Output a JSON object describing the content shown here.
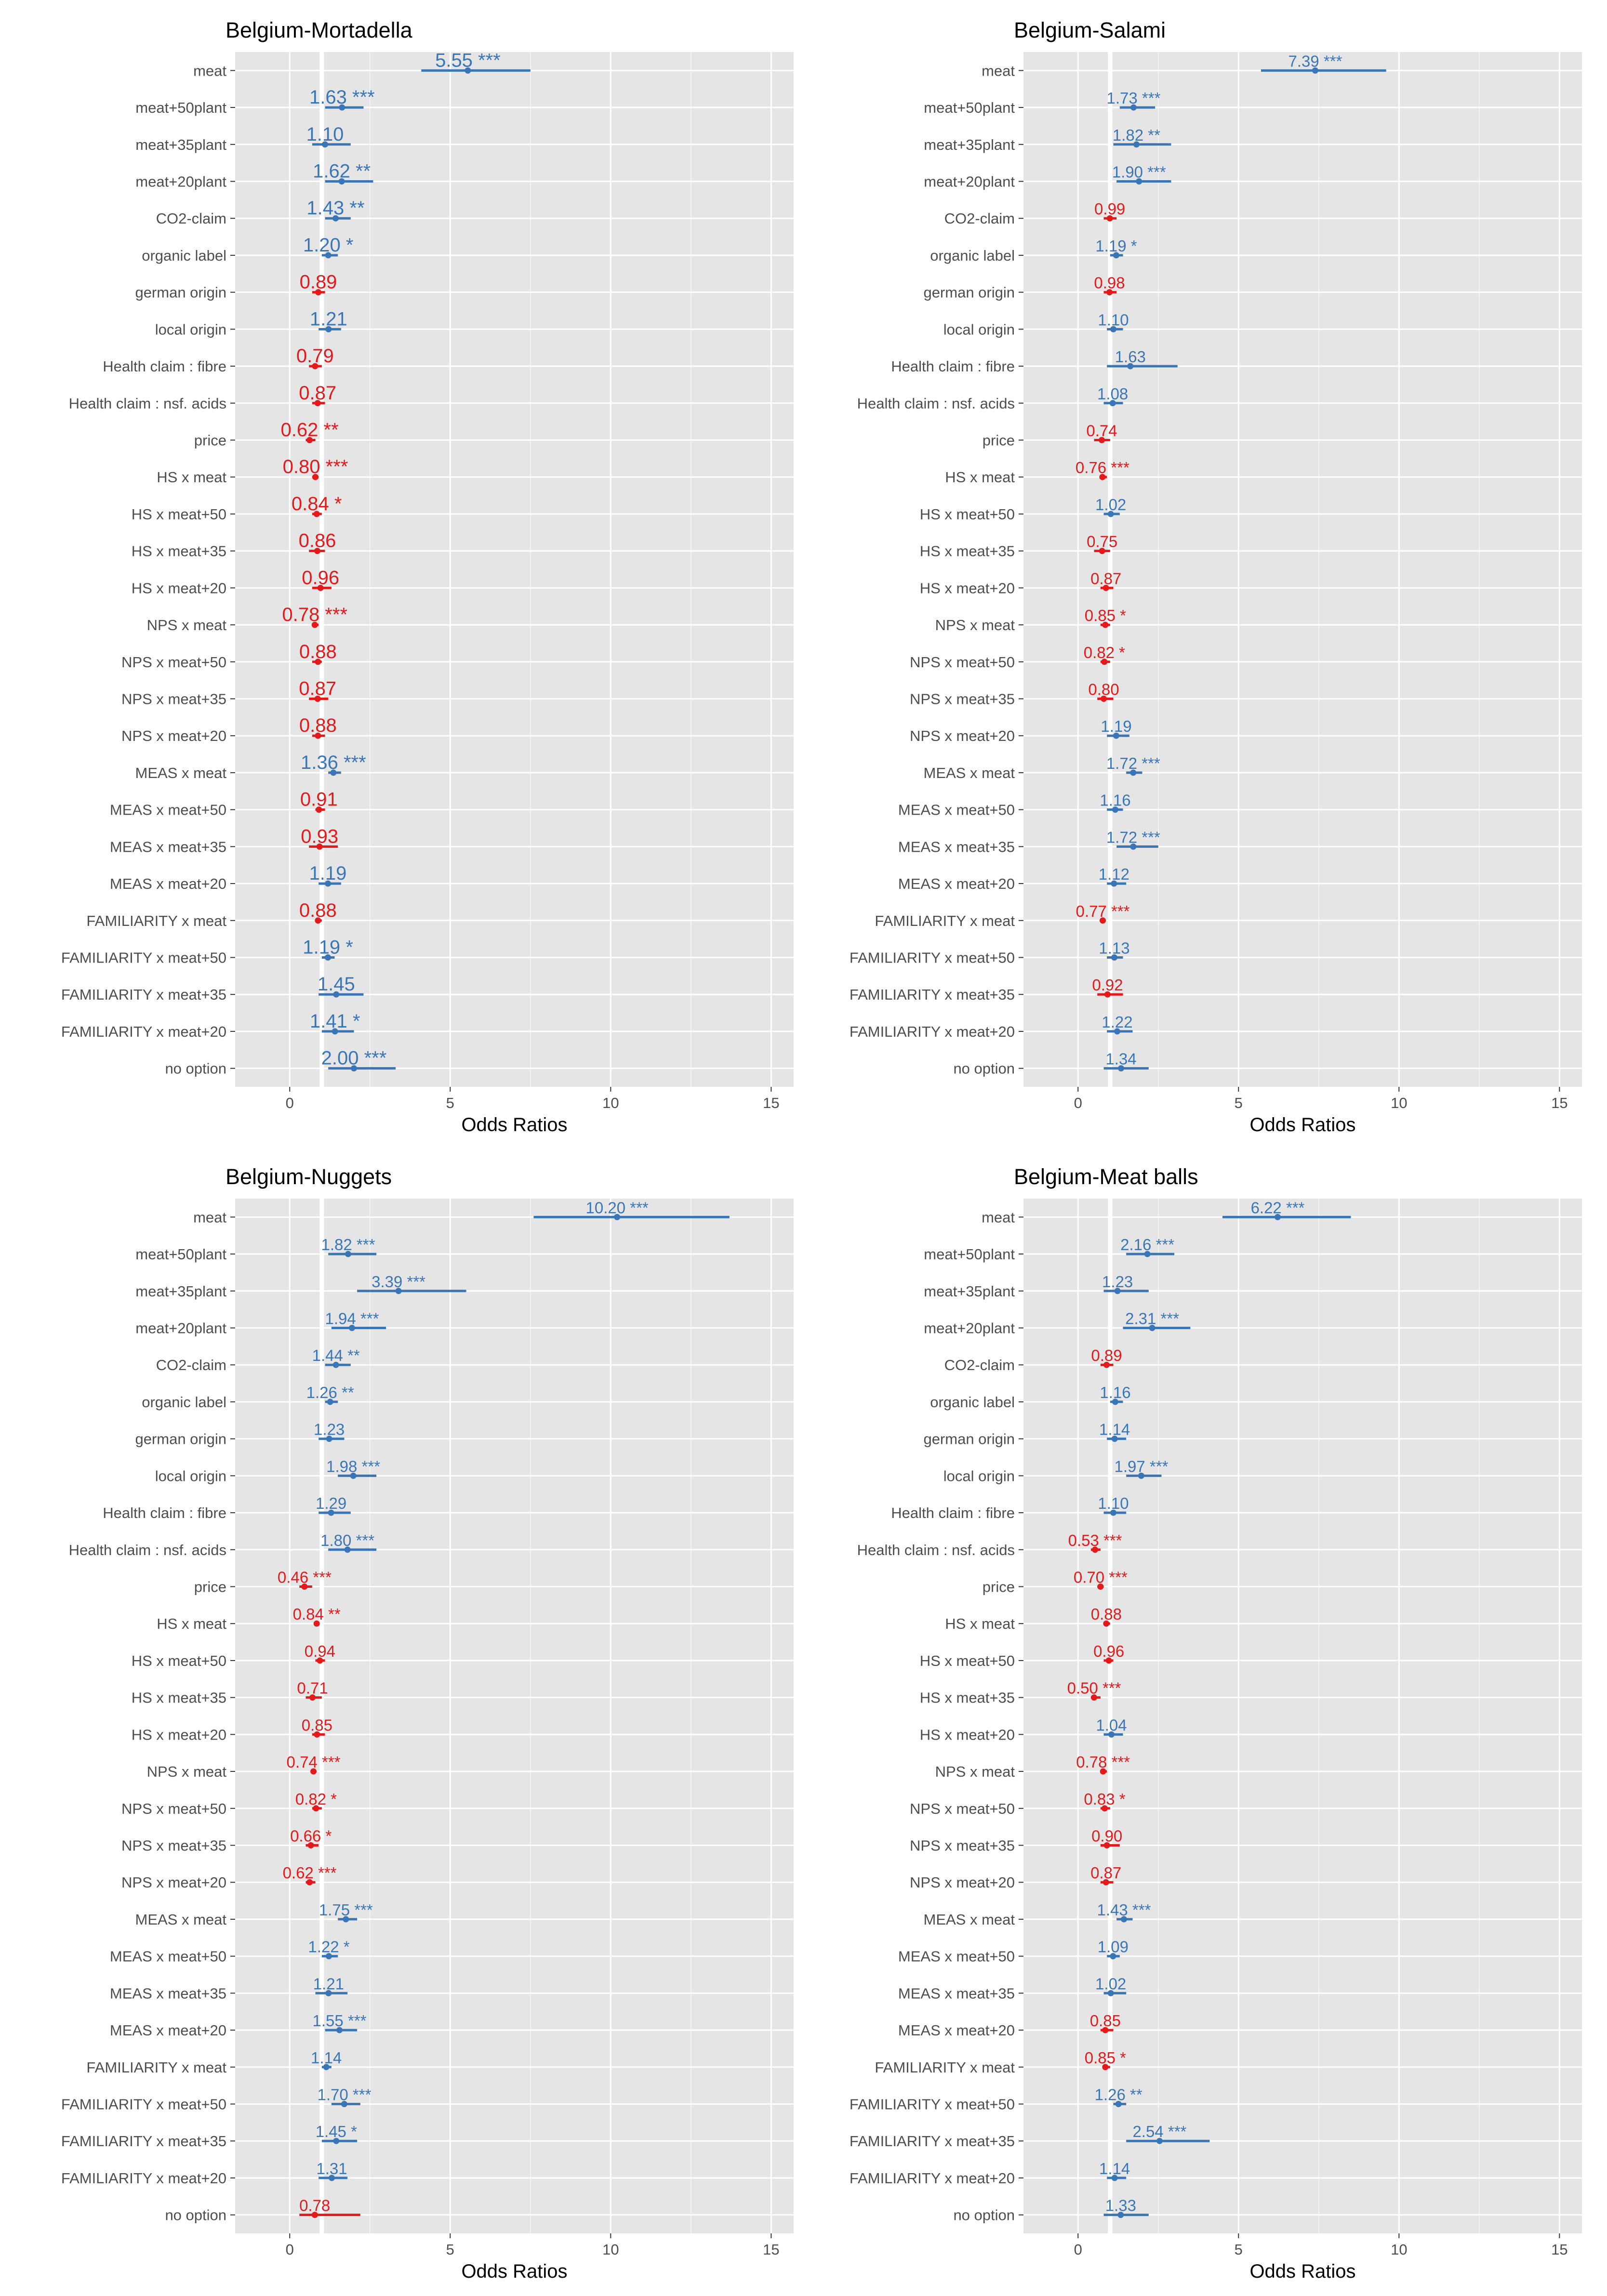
{
  "chart_data": [
    {
      "type": "forest",
      "title": "Belgium-Mortadella",
      "xlabel": "Odds Ratios",
      "xlim": [
        -1.7,
        15.7
      ],
      "xticks": [
        0,
        5,
        10,
        15
      ],
      "reference_line": 1,
      "grid": true,
      "label_size": "large",
      "rows": [
        {
          "label": "meat",
          "or": 5.55,
          "lo": 4.1,
          "hi": 7.5,
          "text": "5.55 ***"
        },
        {
          "label": "meat+50plant",
          "or": 1.63,
          "lo": 1.1,
          "hi": 2.3,
          "text": "1.63 ***"
        },
        {
          "label": "meat+35plant",
          "or": 1.1,
          "lo": 0.7,
          "hi": 1.9,
          "text": "1.10"
        },
        {
          "label": "meat+20plant",
          "or": 1.62,
          "lo": 1.1,
          "hi": 2.6,
          "text": "1.62 **"
        },
        {
          "label": "CO2-claim",
          "or": 1.43,
          "lo": 1.1,
          "hi": 1.9,
          "text": "1.43 **"
        },
        {
          "label": "organic label",
          "or": 1.2,
          "lo": 1.0,
          "hi": 1.5,
          "text": "1.20 *"
        },
        {
          "label": "german origin",
          "or": 0.89,
          "lo": 0.7,
          "hi": 1.1,
          "text": "0.89"
        },
        {
          "label": "local origin",
          "or": 1.21,
          "lo": 0.9,
          "hi": 1.6,
          "text": "1.21"
        },
        {
          "label": "Health claim :  fibre",
          "or": 0.79,
          "lo": 0.6,
          "hi": 1.0,
          "text": "0.79"
        },
        {
          "label": "Health claim :  nsf. acids",
          "or": 0.87,
          "lo": 0.7,
          "hi": 1.1,
          "text": "0.87"
        },
        {
          "label": "price",
          "or": 0.62,
          "lo": 0.5,
          "hi": 0.8,
          "text": "0.62 **"
        },
        {
          "label": "HS x meat",
          "or": 0.8,
          "lo": 0.7,
          "hi": 0.9,
          "text": "0.80 ***"
        },
        {
          "label": "HS x meat+50",
          "or": 0.84,
          "lo": 0.7,
          "hi": 1.0,
          "text": "0.84 *"
        },
        {
          "label": "HS x meat+35",
          "or": 0.86,
          "lo": 0.6,
          "hi": 1.1,
          "text": "0.86"
        },
        {
          "label": "HS x meat+20",
          "or": 0.96,
          "lo": 0.7,
          "hi": 1.3,
          "text": "0.96"
        },
        {
          "label": "NPS x meat",
          "or": 0.78,
          "lo": 0.7,
          "hi": 0.9,
          "text": "0.78 ***"
        },
        {
          "label": "NPS x meat+50",
          "or": 0.88,
          "lo": 0.7,
          "hi": 1.0,
          "text": "0.88"
        },
        {
          "label": "NPS x meat+35",
          "or": 0.87,
          "lo": 0.6,
          "hi": 1.2,
          "text": "0.87"
        },
        {
          "label": "NPS x meat+20",
          "or": 0.88,
          "lo": 0.7,
          "hi": 1.1,
          "text": "0.88"
        },
        {
          "label": "MEAS x meat",
          "or": 1.36,
          "lo": 1.2,
          "hi": 1.6,
          "text": "1.36 ***"
        },
        {
          "label": "MEAS x meat+50",
          "or": 0.91,
          "lo": 0.8,
          "hi": 1.1,
          "text": "0.91"
        },
        {
          "label": "MEAS x meat+35",
          "or": 0.93,
          "lo": 0.6,
          "hi": 1.5,
          "text": "0.93"
        },
        {
          "label": "MEAS x meat+20",
          "or": 1.19,
          "lo": 0.9,
          "hi": 1.6,
          "text": "1.19"
        },
        {
          "label": "FAMILIARITY x meat",
          "or": 0.88,
          "lo": 0.8,
          "hi": 1.0,
          "text": "0.88"
        },
        {
          "label": "FAMILIARITY x meat+50",
          "or": 1.19,
          "lo": 1.0,
          "hi": 1.4,
          "text": "1.19 *"
        },
        {
          "label": "FAMILIARITY x meat+35",
          "or": 1.45,
          "lo": 0.9,
          "hi": 2.3,
          "text": "1.45"
        },
        {
          "label": "FAMILIARITY x meat+20",
          "or": 1.41,
          "lo": 1.0,
          "hi": 2.0,
          "text": "1.41 *"
        },
        {
          "label": "no option",
          "or": 2.0,
          "lo": 1.2,
          "hi": 3.3,
          "text": "2.00 ***"
        }
      ]
    },
    {
      "type": "forest",
      "title": "Belgium-Salami",
      "xlabel": "Odds Ratios",
      "xlim": [
        -1.7,
        15.7
      ],
      "xticks": [
        0,
        5,
        10,
        15
      ],
      "reference_line": 1,
      "grid": true,
      "label_size": "small",
      "rows": [
        {
          "label": "meat",
          "or": 7.39,
          "lo": 5.7,
          "hi": 9.6,
          "text": "7.39 ***"
        },
        {
          "label": "meat+50plant",
          "or": 1.73,
          "lo": 1.3,
          "hi": 2.4,
          "text": "1.73 ***"
        },
        {
          "label": "meat+35plant",
          "or": 1.82,
          "lo": 1.1,
          "hi": 2.9,
          "text": "1.82 **"
        },
        {
          "label": "meat+20plant",
          "or": 1.9,
          "lo": 1.2,
          "hi": 2.9,
          "text": "1.90 ***"
        },
        {
          "label": "CO2-claim",
          "or": 0.99,
          "lo": 0.8,
          "hi": 1.2,
          "text": "0.99"
        },
        {
          "label": "organic label",
          "or": 1.19,
          "lo": 1.0,
          "hi": 1.4,
          "text": "1.19 *"
        },
        {
          "label": "german origin",
          "or": 0.98,
          "lo": 0.8,
          "hi": 1.2,
          "text": "0.98"
        },
        {
          "label": "local origin",
          "or": 1.1,
          "lo": 0.9,
          "hi": 1.4,
          "text": "1.10"
        },
        {
          "label": "Health claim :  fibre",
          "or": 1.63,
          "lo": 0.9,
          "hi": 3.1,
          "text": "1.63"
        },
        {
          "label": "Health claim :  nsf. acids",
          "or": 1.08,
          "lo": 0.8,
          "hi": 1.4,
          "text": "1.08"
        },
        {
          "label": "price",
          "or": 0.74,
          "lo": 0.5,
          "hi": 1.0,
          "text": "0.74"
        },
        {
          "label": "HS x meat",
          "or": 0.76,
          "lo": 0.7,
          "hi": 0.9,
          "text": "0.76 ***"
        },
        {
          "label": "HS x meat+50",
          "or": 1.02,
          "lo": 0.8,
          "hi": 1.3,
          "text": "1.02"
        },
        {
          "label": "HS x meat+35",
          "or": 0.75,
          "lo": 0.5,
          "hi": 1.0,
          "text": "0.75"
        },
        {
          "label": "HS x meat+20",
          "or": 0.87,
          "lo": 0.7,
          "hi": 1.1,
          "text": "0.87"
        },
        {
          "label": "NPS x meat",
          "or": 0.85,
          "lo": 0.7,
          "hi": 1.0,
          "text": "0.85 *"
        },
        {
          "label": "NPS x meat+50",
          "or": 0.82,
          "lo": 0.7,
          "hi": 1.0,
          "text": "0.82 *"
        },
        {
          "label": "NPS x meat+35",
          "or": 0.8,
          "lo": 0.6,
          "hi": 1.1,
          "text": "0.80"
        },
        {
          "label": "NPS x meat+20",
          "or": 1.19,
          "lo": 0.9,
          "hi": 1.6,
          "text": "1.19"
        },
        {
          "label": "MEAS x meat",
          "or": 1.72,
          "lo": 1.5,
          "hi": 2.0,
          "text": "1.72 ***"
        },
        {
          "label": "MEAS x meat+50",
          "or": 1.16,
          "lo": 0.9,
          "hi": 1.4,
          "text": "1.16"
        },
        {
          "label": "MEAS x meat+35",
          "or": 1.72,
          "lo": 1.2,
          "hi": 2.5,
          "text": "1.72 ***"
        },
        {
          "label": "MEAS x meat+20",
          "or": 1.12,
          "lo": 0.9,
          "hi": 1.5,
          "text": "1.12"
        },
        {
          "label": "FAMILIARITY x meat",
          "or": 0.77,
          "lo": 0.7,
          "hi": 0.8,
          "text": "0.77 ***"
        },
        {
          "label": "FAMILIARITY x meat+50",
          "or": 1.13,
          "lo": 0.9,
          "hi": 1.4,
          "text": "1.13"
        },
        {
          "label": "FAMILIARITY x meat+35",
          "or": 0.92,
          "lo": 0.6,
          "hi": 1.4,
          "text": "0.92"
        },
        {
          "label": "FAMILIARITY x meat+20",
          "or": 1.22,
          "lo": 0.9,
          "hi": 1.7,
          "text": "1.22"
        },
        {
          "label": "no option",
          "or": 1.34,
          "lo": 0.8,
          "hi": 2.2,
          "text": "1.34"
        }
      ]
    },
    {
      "type": "forest",
      "title": "Belgium-Nuggets",
      "xlabel": "Odds Ratios",
      "xlim": [
        -1.7,
        15.7
      ],
      "xticks": [
        0,
        5,
        10,
        15
      ],
      "reference_line": 1,
      "grid": true,
      "label_size": "small",
      "rows": [
        {
          "label": "meat",
          "or": 10.2,
          "lo": 7.6,
          "hi": 13.7,
          "text": "10.20 ***"
        },
        {
          "label": "meat+50plant",
          "or": 1.82,
          "lo": 1.2,
          "hi": 2.7,
          "text": "1.82 ***"
        },
        {
          "label": "meat+35plant",
          "or": 3.39,
          "lo": 2.1,
          "hi": 5.5,
          "text": "3.39 ***"
        },
        {
          "label": "meat+20plant",
          "or": 1.94,
          "lo": 1.3,
          "hi": 3.0,
          "text": "1.94 ***"
        },
        {
          "label": "CO2-claim",
          "or": 1.44,
          "lo": 1.1,
          "hi": 1.9,
          "text": "1.44 **"
        },
        {
          "label": "organic label",
          "or": 1.26,
          "lo": 1.1,
          "hi": 1.5,
          "text": "1.26 **"
        },
        {
          "label": "german origin",
          "or": 1.23,
          "lo": 0.9,
          "hi": 1.7,
          "text": "1.23"
        },
        {
          "label": "local origin",
          "or": 1.98,
          "lo": 1.5,
          "hi": 2.7,
          "text": "1.98 ***"
        },
        {
          "label": "Health claim :  fibre",
          "or": 1.29,
          "lo": 0.9,
          "hi": 1.9,
          "text": "1.29"
        },
        {
          "label": "Health claim :  nsf. acids",
          "or": 1.8,
          "lo": 1.2,
          "hi": 2.7,
          "text": "1.80 ***"
        },
        {
          "label": "price",
          "or": 0.46,
          "lo": 0.3,
          "hi": 0.7,
          "text": "0.46 ***"
        },
        {
          "label": "HS x meat",
          "or": 0.84,
          "lo": 0.8,
          "hi": 0.9,
          "text": "0.84 **"
        },
        {
          "label": "HS x meat+50",
          "or": 0.94,
          "lo": 0.8,
          "hi": 1.1,
          "text": "0.94"
        },
        {
          "label": "HS x meat+35",
          "or": 0.71,
          "lo": 0.5,
          "hi": 1.0,
          "text": "0.71"
        },
        {
          "label": "HS x meat+20",
          "or": 0.85,
          "lo": 0.7,
          "hi": 1.1,
          "text": "0.85"
        },
        {
          "label": "NPS x meat",
          "or": 0.74,
          "lo": 0.7,
          "hi": 0.8,
          "text": "0.74 ***"
        },
        {
          "label": "NPS x meat+50",
          "or": 0.82,
          "lo": 0.7,
          "hi": 1.0,
          "text": "0.82 *"
        },
        {
          "label": "NPS x meat+35",
          "or": 0.66,
          "lo": 0.5,
          "hi": 0.9,
          "text": "0.66 *"
        },
        {
          "label": "NPS x meat+20",
          "or": 0.62,
          "lo": 0.5,
          "hi": 0.8,
          "text": "0.62 ***"
        },
        {
          "label": "MEAS x meat",
          "or": 1.75,
          "lo": 1.5,
          "hi": 2.1,
          "text": "1.75 ***"
        },
        {
          "label": "MEAS x meat+50",
          "or": 1.22,
          "lo": 1.0,
          "hi": 1.5,
          "text": "1.22 *"
        },
        {
          "label": "MEAS x meat+35",
          "or": 1.21,
          "lo": 0.8,
          "hi": 1.8,
          "text": "1.21"
        },
        {
          "label": "MEAS x meat+20",
          "or": 1.55,
          "lo": 1.1,
          "hi": 2.1,
          "text": "1.55 ***"
        },
        {
          "label": "FAMILIARITY x meat",
          "or": 1.14,
          "lo": 1.0,
          "hi": 1.3,
          "text": "1.14"
        },
        {
          "label": "FAMILIARITY x meat+50",
          "or": 1.7,
          "lo": 1.3,
          "hi": 2.2,
          "text": "1.70 ***"
        },
        {
          "label": "FAMILIARITY x meat+35",
          "or": 1.45,
          "lo": 1.0,
          "hi": 2.1,
          "text": "1.45 *"
        },
        {
          "label": "FAMILIARITY x meat+20",
          "or": 1.31,
          "lo": 0.9,
          "hi": 1.8,
          "text": "1.31"
        },
        {
          "label": "no option",
          "or": 0.78,
          "lo": 0.3,
          "hi": 2.2,
          "text": "0.78"
        }
      ]
    },
    {
      "type": "forest",
      "title": "Belgium-Meat balls",
      "xlabel": "Odds Ratios",
      "xlim": [
        -1.7,
        15.7
      ],
      "xticks": [
        0,
        5,
        10,
        15
      ],
      "reference_line": 1,
      "grid": true,
      "label_size": "small",
      "rows": [
        {
          "label": "meat",
          "or": 6.22,
          "lo": 4.5,
          "hi": 8.5,
          "text": "6.22 ***"
        },
        {
          "label": "meat+50plant",
          "or": 2.16,
          "lo": 1.5,
          "hi": 3.0,
          "text": "2.16 ***"
        },
        {
          "label": "meat+35plant",
          "or": 1.23,
          "lo": 0.8,
          "hi": 2.2,
          "text": "1.23"
        },
        {
          "label": "meat+20plant",
          "or": 2.31,
          "lo": 1.4,
          "hi": 3.5,
          "text": "2.31 ***"
        },
        {
          "label": "CO2-claim",
          "or": 0.89,
          "lo": 0.7,
          "hi": 1.1,
          "text": "0.89"
        },
        {
          "label": "organic label",
          "or": 1.16,
          "lo": 1.0,
          "hi": 1.4,
          "text": "1.16"
        },
        {
          "label": "german origin",
          "or": 1.14,
          "lo": 0.9,
          "hi": 1.5,
          "text": "1.14"
        },
        {
          "label": "local origin",
          "or": 1.97,
          "lo": 1.5,
          "hi": 2.6,
          "text": "1.97 ***"
        },
        {
          "label": "Health claim :  fibre",
          "or": 1.1,
          "lo": 0.8,
          "hi": 1.5,
          "text": "1.10"
        },
        {
          "label": "Health claim :  nsf. acids",
          "or": 0.53,
          "lo": 0.4,
          "hi": 0.7,
          "text": "0.53 ***"
        },
        {
          "label": "price",
          "or": 0.7,
          "lo": 0.6,
          "hi": 0.8,
          "text": "0.70 ***"
        },
        {
          "label": "HS x meat",
          "or": 0.88,
          "lo": 0.8,
          "hi": 1.0,
          "text": "0.88"
        },
        {
          "label": "HS x meat+50",
          "or": 0.96,
          "lo": 0.8,
          "hi": 1.1,
          "text": "0.96"
        },
        {
          "label": "HS x meat+35",
          "or": 0.5,
          "lo": 0.4,
          "hi": 0.7,
          "text": "0.50 ***"
        },
        {
          "label": "HS x meat+20",
          "or": 1.04,
          "lo": 0.8,
          "hi": 1.4,
          "text": "1.04"
        },
        {
          "label": "NPS x meat",
          "or": 0.78,
          "lo": 0.7,
          "hi": 0.9,
          "text": "0.78 ***"
        },
        {
          "label": "NPS x meat+50",
          "or": 0.83,
          "lo": 0.7,
          "hi": 1.0,
          "text": "0.83 *"
        },
        {
          "label": "NPS x meat+35",
          "or": 0.9,
          "lo": 0.7,
          "hi": 1.3,
          "text": "0.90"
        },
        {
          "label": "NPS x meat+20",
          "or": 0.87,
          "lo": 0.7,
          "hi": 1.1,
          "text": "0.87"
        },
        {
          "label": "MEAS x meat",
          "or": 1.43,
          "lo": 1.2,
          "hi": 1.7,
          "text": "1.43 ***"
        },
        {
          "label": "MEAS x meat+50",
          "or": 1.09,
          "lo": 0.9,
          "hi": 1.3,
          "text": "1.09"
        },
        {
          "label": "MEAS x meat+35",
          "or": 1.02,
          "lo": 0.8,
          "hi": 1.5,
          "text": "1.02"
        },
        {
          "label": "MEAS x meat+20",
          "or": 0.85,
          "lo": 0.7,
          "hi": 1.1,
          "text": "0.85"
        },
        {
          "label": "FAMILIARITY x meat",
          "or": 0.85,
          "lo": 0.8,
          "hi": 1.0,
          "text": "0.85 *"
        },
        {
          "label": "FAMILIARITY x meat+50",
          "or": 1.26,
          "lo": 1.1,
          "hi": 1.5,
          "text": "1.26 **"
        },
        {
          "label": "FAMILIARITY x meat+35",
          "or": 2.54,
          "lo": 1.5,
          "hi": 4.1,
          "text": "2.54 ***"
        },
        {
          "label": "FAMILIARITY x meat+20",
          "or": 1.14,
          "lo": 0.9,
          "hi": 1.5,
          "text": "1.14"
        },
        {
          "label": "no option",
          "or": 1.33,
          "lo": 0.8,
          "hi": 2.2,
          "text": "1.33"
        }
      ]
    }
  ],
  "colors": {
    "above_one": "#3A76B5",
    "below_one": "#E31A1C",
    "panel_bg": "#E5E5E5",
    "grid_major": "#FFFFFF",
    "axis_text": "#4D4D4D"
  }
}
